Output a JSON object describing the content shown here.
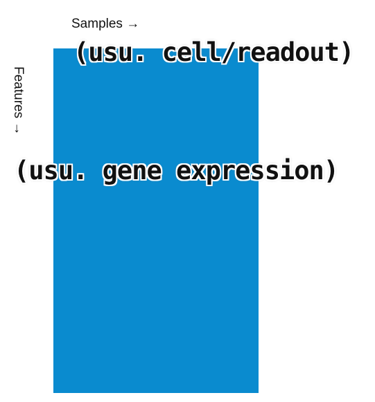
{
  "axes": {
    "samples_label": "Samples →",
    "features_label": "Features →"
  },
  "annotations": {
    "samples_note": "(usu. cell/readout)",
    "features_note": "(usu. gene expression)"
  },
  "colors": {
    "matrix_fill": "#0a8bcf",
    "background": "#ffffff",
    "text": "#111111"
  }
}
